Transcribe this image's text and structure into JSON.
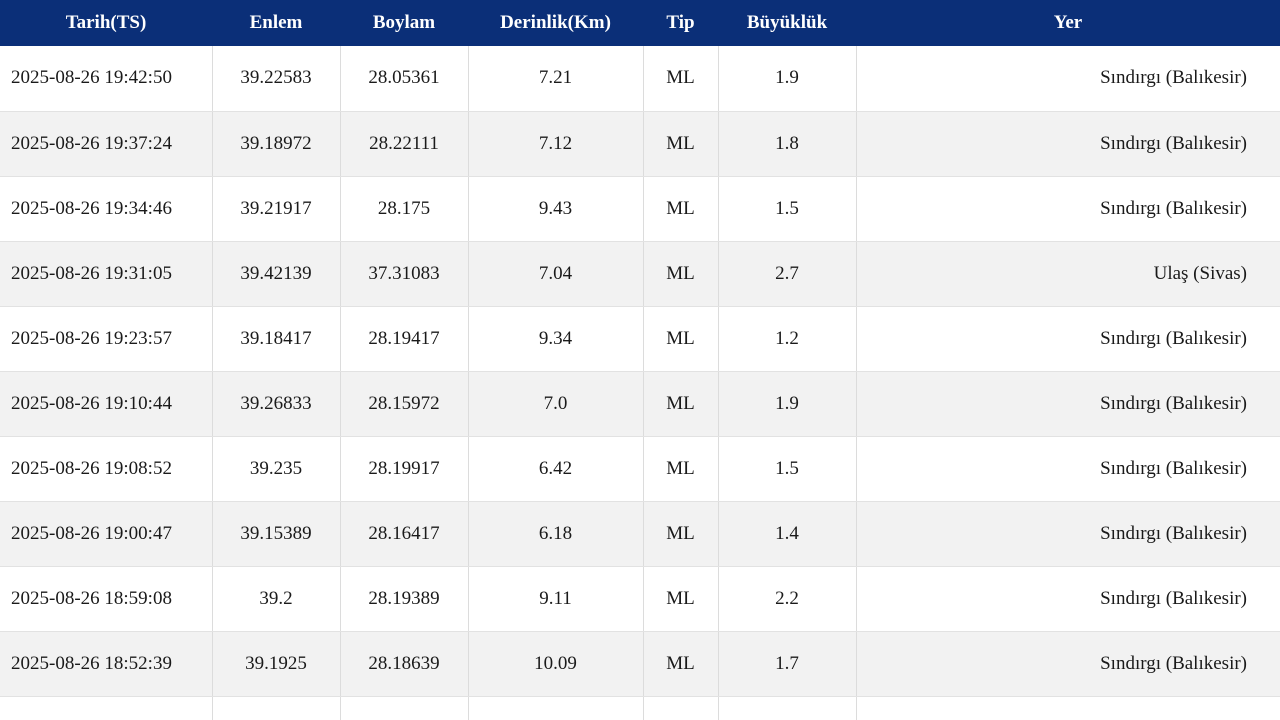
{
  "table": {
    "headers": {
      "date": "Tarih(TS)",
      "lat": "Enlem",
      "lon": "Boylam",
      "depth": "Derinlik(Km)",
      "type": "Tip",
      "mag": "Büyüklük",
      "place": "Yer"
    },
    "rows": [
      {
        "date": "2025-08-26 19:42:50",
        "lat": "39.22583",
        "lon": "28.05361",
        "depth": "7.21",
        "type": "ML",
        "mag": "1.9",
        "place": "Sındırgı (Balıkesir)"
      },
      {
        "date": "2025-08-26 19:37:24",
        "lat": "39.18972",
        "lon": "28.22111",
        "depth": "7.12",
        "type": "ML",
        "mag": "1.8",
        "place": "Sındırgı (Balıkesir)"
      },
      {
        "date": "2025-08-26 19:34:46",
        "lat": "39.21917",
        "lon": "28.175",
        "depth": "9.43",
        "type": "ML",
        "mag": "1.5",
        "place": "Sındırgı (Balıkesir)"
      },
      {
        "date": "2025-08-26 19:31:05",
        "lat": "39.42139",
        "lon": "37.31083",
        "depth": "7.04",
        "type": "ML",
        "mag": "2.7",
        "place": "Ulaş (Sivas)"
      },
      {
        "date": "2025-08-26 19:23:57",
        "lat": "39.18417",
        "lon": "28.19417",
        "depth": "9.34",
        "type": "ML",
        "mag": "1.2",
        "place": "Sındırgı (Balıkesir)"
      },
      {
        "date": "2025-08-26 19:10:44",
        "lat": "39.26833",
        "lon": "28.15972",
        "depth": "7.0",
        "type": "ML",
        "mag": "1.9",
        "place": "Sındırgı (Balıkesir)"
      },
      {
        "date": "2025-08-26 19:08:52",
        "lat": "39.235",
        "lon": "28.19917",
        "depth": "6.42",
        "type": "ML",
        "mag": "1.5",
        "place": "Sındırgı (Balıkesir)"
      },
      {
        "date": "2025-08-26 19:00:47",
        "lat": "39.15389",
        "lon": "28.16417",
        "depth": "6.18",
        "type": "ML",
        "mag": "1.4",
        "place": "Sındırgı (Balıkesir)"
      },
      {
        "date": "2025-08-26 18:59:08",
        "lat": "39.2",
        "lon": "28.19389",
        "depth": "9.11",
        "type": "ML",
        "mag": "2.2",
        "place": "Sındırgı (Balıkesir)"
      },
      {
        "date": "2025-08-26 18:52:39",
        "lat": "39.1925",
        "lon": "28.18639",
        "depth": "10.09",
        "type": "ML",
        "mag": "1.7",
        "place": "Sındırgı (Balıkesir)"
      }
    ]
  },
  "colors": {
    "header_bg": "#0b2f78",
    "header_text": "#ffffff",
    "row_alt_bg": "#f2f2f2"
  }
}
